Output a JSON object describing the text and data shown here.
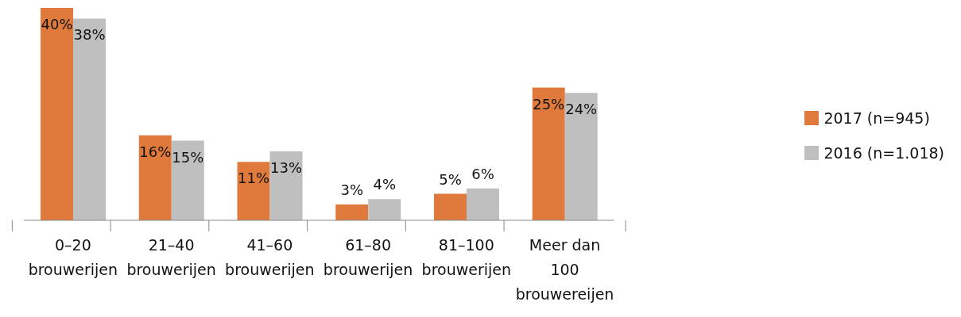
{
  "chart_data": {
    "type": "bar",
    "categories": [
      "0–20 brouwerijen",
      "21–40 brouwerijen",
      "41–60 brouwerijen",
      "61–80 brouwerijen",
      "81–100 brouwerijen",
      "Meer dan 100 brouwereijen"
    ],
    "series": [
      {
        "name": "2017 (n=945)",
        "color": "#e07a3c",
        "values": [
          40,
          16,
          11,
          3,
          5,
          25
        ],
        "value_labels": [
          "40%",
          "16%",
          "11%",
          "3%",
          "5%",
          "25%"
        ]
      },
      {
        "name": "2016 (n=1.018)",
        "color": "#bfbfbf",
        "values": [
          38,
          15,
          13,
          4,
          6,
          24
        ],
        "value_labels": [
          "38%",
          "15%",
          "13%",
          "4%",
          "6%",
          "24%"
        ]
      }
    ],
    "legend": "right",
    "grid": false
  }
}
